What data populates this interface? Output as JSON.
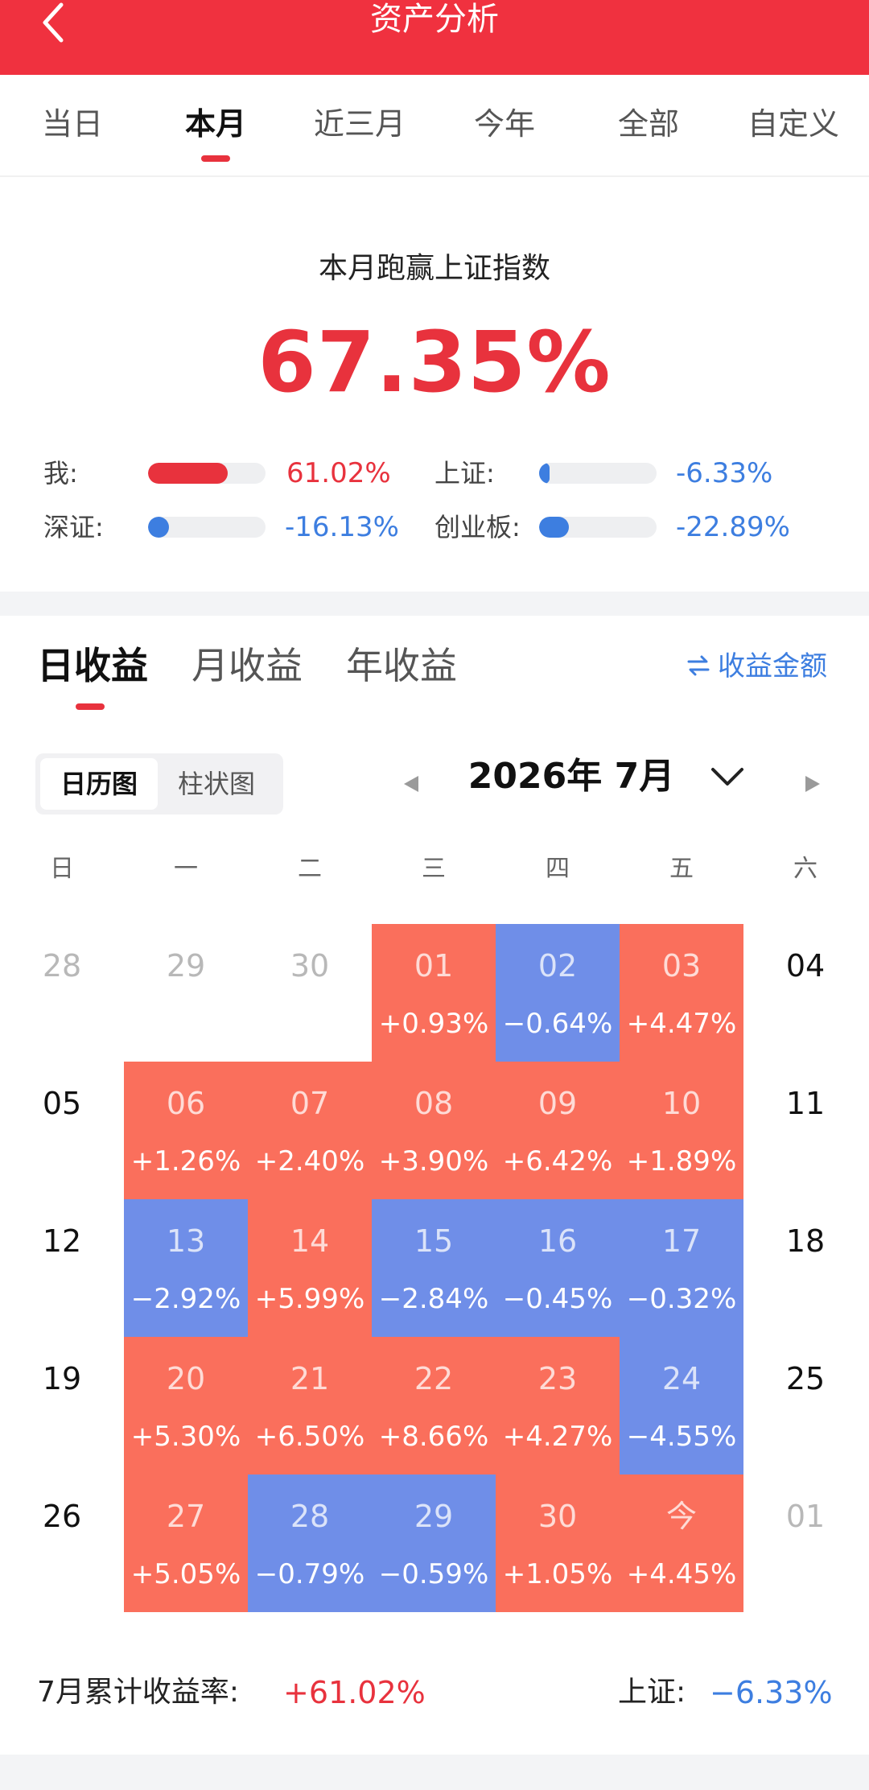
{
  "header": {
    "title": "资产分析"
  },
  "period_tabs": [
    {
      "label": "当日",
      "active": false
    },
    {
      "label": "本月",
      "active": true
    },
    {
      "label": "近三月",
      "active": false
    },
    {
      "label": "今年",
      "active": false
    },
    {
      "label": "全部",
      "active": false
    },
    {
      "label": "自定义",
      "active": false
    }
  ],
  "summary": {
    "label": "本月跑赢上证指数",
    "value": "67.35%"
  },
  "comparisons": [
    {
      "name": "我:",
      "value": "61.02%",
      "level": 0.6102,
      "color": "#e8323d"
    },
    {
      "name": "上证:",
      "value": "-6.33%",
      "level": 0.0633,
      "color": "#3d7ee0"
    },
    {
      "name": "深证:",
      "value": "-16.13%",
      "level": 0.1613,
      "color": "#3d7ee0"
    },
    {
      "name": "创业板:",
      "value": "-22.89%",
      "level": 0.2289,
      "color": "#3d7ee0"
    }
  ],
  "earnings_tabs": [
    {
      "label": "日收益",
      "active": true
    },
    {
      "label": "月收益",
      "active": false
    },
    {
      "label": "年收益",
      "active": false
    }
  ],
  "amount_toggle": {
    "icon": "swap-arrows-icon",
    "label": "收益金额"
  },
  "view_switch": {
    "options": [
      "日历图",
      "柱状图"
    ],
    "selected": "日历图"
  },
  "month": {
    "label": "2026年 7月"
  },
  "weekdays": [
    "日",
    "一",
    "二",
    "三",
    "四",
    "五",
    "六"
  ],
  "calendar": [
    [
      {
        "day": "28",
        "style": "muted"
      },
      {
        "day": "29",
        "style": "muted"
      },
      {
        "day": "30",
        "style": "muted"
      },
      {
        "day": "01",
        "pct": "+0.93%",
        "style": "up"
      },
      {
        "day": "02",
        "pct": "−0.64%",
        "style": "down"
      },
      {
        "day": "03",
        "pct": "+4.47%",
        "style": "up"
      },
      {
        "day": "04",
        "style": "plain"
      }
    ],
    [
      {
        "day": "05",
        "style": "plain"
      },
      {
        "day": "06",
        "pct": "+1.26%",
        "style": "up"
      },
      {
        "day": "07",
        "pct": "+2.40%",
        "style": "up"
      },
      {
        "day": "08",
        "pct": "+3.90%",
        "style": "up"
      },
      {
        "day": "09",
        "pct": "+6.42%",
        "style": "up"
      },
      {
        "day": "10",
        "pct": "+1.89%",
        "style": "up"
      },
      {
        "day": "11",
        "style": "plain"
      }
    ],
    [
      {
        "day": "12",
        "style": "plain"
      },
      {
        "day": "13",
        "pct": "−2.92%",
        "style": "down"
      },
      {
        "day": "14",
        "pct": "+5.99%",
        "style": "up"
      },
      {
        "day": "15",
        "pct": "−2.84%",
        "style": "down"
      },
      {
        "day": "16",
        "pct": "−0.45%",
        "style": "down"
      },
      {
        "day": "17",
        "pct": "−0.32%",
        "style": "down"
      },
      {
        "day": "18",
        "style": "plain"
      }
    ],
    [
      {
        "day": "19",
        "style": "plain"
      },
      {
        "day": "20",
        "pct": "+5.30%",
        "style": "up"
      },
      {
        "day": "21",
        "pct": "+6.50%",
        "style": "up"
      },
      {
        "day": "22",
        "pct": "+8.66%",
        "style": "up"
      },
      {
        "day": "23",
        "pct": "+4.27%",
        "style": "up"
      },
      {
        "day": "24",
        "pct": "−4.55%",
        "style": "down"
      },
      {
        "day": "25",
        "style": "plain"
      }
    ],
    [
      {
        "day": "26",
        "style": "plain"
      },
      {
        "day": "27",
        "pct": "+5.05%",
        "style": "up"
      },
      {
        "day": "28",
        "pct": "−0.79%",
        "style": "down"
      },
      {
        "day": "29",
        "pct": "−0.59%",
        "style": "down"
      },
      {
        "day": "30",
        "pct": "+1.05%",
        "style": "up"
      },
      {
        "day": "今",
        "pct": "+4.45%",
        "style": "up"
      },
      {
        "day": "01",
        "style": "muted"
      }
    ]
  ],
  "footer": {
    "cumulative_label": "7月累计收益率:",
    "cumulative_value": "+61.02%",
    "index_label": "上证:",
    "index_value": "−6.33%"
  },
  "colors": {
    "header": "#f0313f",
    "gain": "#fa6f5c",
    "loss": "#6f8ee8",
    "accent_red": "#e8323d",
    "accent_blue": "#3d7ee0"
  }
}
